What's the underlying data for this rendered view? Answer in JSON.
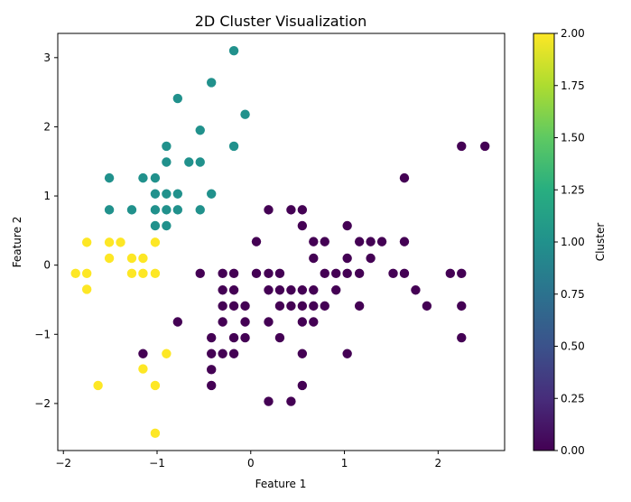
{
  "chart_data": {
    "type": "scatter",
    "title": "2D Cluster Visualization",
    "xlabel": "Feature 1",
    "ylabel": "Feature 2",
    "xlim": [
      -2.06,
      2.71
    ],
    "ylim": [
      -2.68,
      3.35
    ],
    "xticks": [
      -2,
      -1,
      0,
      1,
      2
    ],
    "yticks": [
      -2,
      -1,
      0,
      1,
      2,
      3
    ],
    "grid": false,
    "colorbar": {
      "label": "Cluster",
      "colormap": "viridis",
      "range": [
        0.0,
        2.0
      ],
      "ticks": [
        "0.00",
        "0.25",
        "0.50",
        "0.75",
        "1.00",
        "1.25",
        "1.50",
        "1.75",
        "2.00"
      ]
    },
    "series": [
      {
        "cluster": 0,
        "color": "#440154",
        "points": [
          [
            2.25,
            1.72
          ],
          [
            2.5,
            1.72
          ],
          [
            1.64,
            1.26
          ],
          [
            0.19,
            0.8
          ],
          [
            0.43,
            0.8
          ],
          [
            0.55,
            0.8
          ],
          [
            0.55,
            0.57
          ],
          [
            1.03,
            0.57
          ],
          [
            0.06,
            0.34
          ],
          [
            0.67,
            0.34
          ],
          [
            0.79,
            0.34
          ],
          [
            1.16,
            0.34
          ],
          [
            1.28,
            0.34
          ],
          [
            1.4,
            0.34
          ],
          [
            1.64,
            0.34
          ],
          [
            0.67,
            0.1
          ],
          [
            1.03,
            0.1
          ],
          [
            1.28,
            0.1
          ],
          [
            -0.54,
            -0.12
          ],
          [
            -0.3,
            -0.12
          ],
          [
            -0.18,
            -0.12
          ],
          [
            0.06,
            -0.12
          ],
          [
            0.19,
            -0.12
          ],
          [
            0.31,
            -0.12
          ],
          [
            0.79,
            -0.12
          ],
          [
            0.91,
            -0.12
          ],
          [
            1.03,
            -0.12
          ],
          [
            1.16,
            -0.12
          ],
          [
            1.52,
            -0.12
          ],
          [
            1.64,
            -0.12
          ],
          [
            2.13,
            -0.12
          ],
          [
            2.25,
            -0.12
          ],
          [
            -0.3,
            -0.36
          ],
          [
            -0.18,
            -0.36
          ],
          [
            0.19,
            -0.36
          ],
          [
            0.31,
            -0.36
          ],
          [
            0.43,
            -0.36
          ],
          [
            0.55,
            -0.36
          ],
          [
            0.67,
            -0.36
          ],
          [
            0.91,
            -0.36
          ],
          [
            1.76,
            -0.36
          ],
          [
            -0.3,
            -0.59
          ],
          [
            -0.18,
            -0.59
          ],
          [
            -0.06,
            -0.59
          ],
          [
            0.31,
            -0.59
          ],
          [
            0.43,
            -0.59
          ],
          [
            0.55,
            -0.59
          ],
          [
            0.67,
            -0.59
          ],
          [
            0.79,
            -0.59
          ],
          [
            1.16,
            -0.59
          ],
          [
            1.88,
            -0.59
          ],
          [
            2.25,
            -0.59
          ],
          [
            -0.78,
            -0.82
          ],
          [
            -0.3,
            -0.82
          ],
          [
            -0.06,
            -0.82
          ],
          [
            0.19,
            -0.82
          ],
          [
            0.55,
            -0.82
          ],
          [
            0.67,
            -0.82
          ],
          [
            -0.42,
            -1.05
          ],
          [
            -0.18,
            -1.05
          ],
          [
            -0.06,
            -1.05
          ],
          [
            0.31,
            -1.05
          ],
          [
            2.25,
            -1.05
          ],
          [
            -1.15,
            -1.28
          ],
          [
            -0.42,
            -1.28
          ],
          [
            -0.3,
            -1.28
          ],
          [
            -0.18,
            -1.28
          ],
          [
            0.55,
            -1.28
          ],
          [
            1.03,
            -1.28
          ],
          [
            -0.42,
            -1.51
          ],
          [
            -0.42,
            -1.74
          ],
          [
            0.55,
            -1.74
          ],
          [
            0.19,
            -1.97
          ],
          [
            0.43,
            -1.97
          ]
        ]
      },
      {
        "cluster": 1,
        "color": "#21918c",
        "points": [
          [
            -0.18,
            3.1
          ],
          [
            -0.42,
            2.64
          ],
          [
            -0.78,
            2.41
          ],
          [
            -0.06,
            2.18
          ],
          [
            -0.54,
            1.95
          ],
          [
            -0.9,
            1.72
          ],
          [
            -0.18,
            1.72
          ],
          [
            -0.9,
            1.49
          ],
          [
            -0.66,
            1.49
          ],
          [
            -0.54,
            1.49
          ],
          [
            -1.51,
            1.26
          ],
          [
            -1.15,
            1.26
          ],
          [
            -1.02,
            1.26
          ],
          [
            -1.02,
            1.03
          ],
          [
            -0.9,
            1.03
          ],
          [
            -0.78,
            1.03
          ],
          [
            -0.42,
            1.03
          ],
          [
            -1.51,
            0.8
          ],
          [
            -1.27,
            0.8
          ],
          [
            -1.02,
            0.8
          ],
          [
            -0.9,
            0.8
          ],
          [
            -0.78,
            0.8
          ],
          [
            -0.54,
            0.8
          ],
          [
            -1.02,
            0.57
          ],
          [
            -0.9,
            0.57
          ]
        ]
      },
      {
        "cluster": 2,
        "color": "#fde725",
        "points": [
          [
            -1.75,
            0.33
          ],
          [
            -1.51,
            0.33
          ],
          [
            -1.39,
            0.33
          ],
          [
            -1.02,
            0.33
          ],
          [
            -1.51,
            0.1
          ],
          [
            -1.27,
            0.1
          ],
          [
            -1.15,
            0.1
          ],
          [
            -1.87,
            -0.12
          ],
          [
            -1.75,
            -0.12
          ],
          [
            -1.27,
            -0.12
          ],
          [
            -1.15,
            -0.12
          ],
          [
            -1.02,
            -0.12
          ],
          [
            -1.75,
            -0.35
          ],
          [
            -0.9,
            -1.28
          ],
          [
            -1.15,
            -1.5
          ],
          [
            -1.63,
            -1.74
          ],
          [
            -1.02,
            -1.74
          ],
          [
            -1.02,
            -2.43
          ]
        ]
      }
    ]
  }
}
